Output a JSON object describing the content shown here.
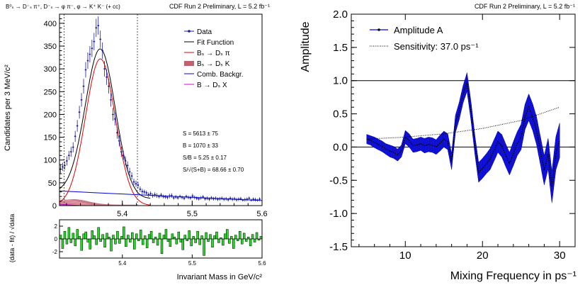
{
  "chart_data": [
    {
      "type": "line",
      "corner_title": "B⁰ₛ → D⁻ₛ π⁺, D⁻ₛ → φ π⁻, φ → K⁺ K⁻ (+ cc)",
      "run_label": "CDF Run 2 Preliminary, L = 5.2 fb⁻¹",
      "xlabel": "Invariant Mass in GeV/c²",
      "ylabel": "Candidates per 3 MeV/c²",
      "xlim": [
        5.31,
        5.6
      ],
      "ylim": [
        0,
        420
      ],
      "x_ticks": [
        "5.4",
        "5.5",
        "5.6"
      ],
      "y_ticks": [
        "0",
        "50",
        "100",
        "150",
        "200",
        "250",
        "300",
        "350",
        "400"
      ],
      "signal_window": [
        5.3166,
        5.4216
      ],
      "legend": [
        "Data",
        "Fit Function",
        "Bₛ → Dₛ π",
        "Bₛ → Dₛ K",
        "Comb. Backgr.",
        "B → Dₛ X"
      ],
      "stats": [
        "S = 5613 ± 75",
        "B = 1070 ± 33",
        "S/B = 5.25 ± 0.17",
        "S/√(S+B) = 68.66 ± 0.70"
      ],
      "series": [
        {
          "name": "Data",
          "x": [
            5.3115,
            5.3145,
            5.3175,
            5.3205,
            5.3235,
            5.3265,
            5.3295,
            5.3325,
            5.3355,
            5.3385,
            5.3415,
            5.3445,
            5.3475,
            5.3505,
            5.3535,
            5.3565,
            5.3595,
            5.3625,
            5.3655,
            5.3685,
            5.3715,
            5.3745,
            5.3775,
            5.3805,
            5.3835,
            5.3865,
            5.3895,
            5.3925,
            5.3955,
            5.3985,
            5.4015,
            5.4045,
            5.4075,
            5.4105,
            5.4135,
            5.4165,
            5.4195,
            5.4225,
            5.4255,
            5.4285,
            5.4315,
            5.4345,
            5.4375,
            5.4405,
            5.4435,
            5.4465,
            5.4495,
            5.4525,
            5.4555,
            5.4585,
            5.4615,
            5.4645,
            5.4675,
            5.4705,
            5.4735,
            5.4765,
            5.4795,
            5.4825,
            5.4855,
            5.4885,
            5.4915,
            5.4945,
            5.4975,
            5.5005,
            5.5035,
            5.5065,
            5.5095,
            5.5125,
            5.5155,
            5.5185,
            5.5215,
            5.5245,
            5.5275,
            5.5305,
            5.5335,
            5.5365,
            5.5395,
            5.5425,
            5.5455,
            5.5485,
            5.5515,
            5.5545,
            5.5575,
            5.5605,
            5.5635,
            5.5665,
            5.5695,
            5.5725,
            5.5755,
            5.5785,
            5.5815,
            5.5845,
            5.5875,
            5.5905,
            5.5935,
            5.5965
          ],
          "y": [
            80,
            85,
            88,
            98,
            110,
            118,
            128,
            152,
            175,
            205,
            232,
            262,
            298,
            318,
            332,
            345,
            360,
            390,
            395,
            365,
            340,
            300,
            282,
            262,
            232,
            200,
            190,
            160,
            142,
            118,
            110,
            98,
            88,
            74,
            65,
            52,
            48,
            45,
            36,
            31,
            30,
            28,
            24,
            26,
            22,
            24,
            22,
            20,
            23,
            20,
            19,
            18,
            21,
            22,
            17,
            19,
            17,
            20,
            18,
            16,
            20,
            18,
            17,
            21,
            18,
            16,
            15,
            17,
            19,
            15,
            16,
            14,
            17,
            15,
            16,
            14,
            15,
            16,
            14,
            15,
            13,
            16,
            14,
            15,
            13,
            14,
            15,
            12,
            13,
            14,
            16,
            12,
            14,
            13,
            12,
            14
          ],
          "errors": [
            9,
            9,
            9,
            10,
            10,
            11,
            11,
            12,
            13,
            14,
            15,
            16,
            17,
            18,
            18,
            19,
            19,
            20,
            20,
            19,
            18,
            17,
            17,
            16,
            15,
            14,
            14,
            13,
            12,
            11,
            10,
            10,
            9,
            9,
            8,
            7,
            7,
            7,
            6,
            6,
            5,
            5,
            5,
            5,
            5,
            5,
            5,
            4,
            5,
            4,
            4,
            4,
            5,
            5,
            4,
            4,
            4,
            4,
            4,
            4,
            4,
            4,
            4,
            5,
            4,
            4,
            4,
            4,
            4,
            4,
            4,
            4,
            4,
            4,
            4,
            4,
            4,
            4,
            4,
            4,
            4,
            4,
            4,
            4,
            4,
            4,
            4,
            3,
            4,
            4,
            4,
            3,
            4,
            4,
            3,
            4
          ]
        },
        {
          "name": "Fit Function",
          "model": {
            "mean": 5.3685,
            "sigma": 0.0213,
            "amplitude": 322,
            "background": [
              15,
              5.6,
              24
            ]
          }
        },
        {
          "name": "Bₛ → Dₛ π",
          "model": {
            "mean": 5.3685,
            "sigma": 0.0213,
            "amplitude": 322
          }
        },
        {
          "name": "Bₛ → Dₛ K",
          "model": {
            "peak": 5.33,
            "height": 12
          }
        },
        {
          "name": "Comb. Backgr.",
          "model": {
            "start": 32,
            "end": 11
          }
        },
        {
          "name": "B → Dₛ X",
          "model": {
            "height": 3
          }
        }
      ]
    },
    {
      "type": "bar",
      "ylabel": "(data - fit) / √data",
      "xlabel": "Invariant Mass in GeV/c²",
      "xlim": [
        5.31,
        5.6
      ],
      "ylim": [
        -3,
        3
      ],
      "x_ticks": [
        "5.4",
        "5.5",
        "5.6"
      ],
      "y_ticks": [
        "2",
        "0",
        "-2"
      ],
      "values": [
        0.6,
        -1.5,
        1.2,
        -0.8,
        1.8,
        -0.6,
        0.9,
        -1.1,
        1.5,
        0.4,
        -1.8,
        0.8,
        1.1,
        -0.5,
        -1.6,
        1.3,
        0.5,
        -0.9,
        1.8,
        -0.4,
        0.7,
        -1.3,
        0.9,
        0.3,
        -1.9,
        0.6,
        -0.8,
        1.2,
        -0.7,
        0.4,
        1.9,
        -1.2,
        0.6,
        -0.5,
        1.0,
        -1.6,
        0.8,
        -0.3,
        1.4,
        -0.9,
        0.5,
        -1.4,
        0.7,
        1.2,
        -0.6,
        0.3,
        -1.0,
        0.9,
        -2.3,
        0.6,
        1.5,
        -0.4,
        -1.2,
        0.8,
        0.3,
        -0.8,
        1.1,
        -0.5,
        -1.7,
        0.6,
        -0.3,
        1.3,
        -1.1,
        0.4,
        -0.6,
        1.2,
        -0.9,
        0.5,
        -2.6,
        1.0,
        -0.4,
        0.7,
        -1.3,
        0.5,
        1.1,
        -0.6,
        0.2,
        -1.0,
        0.8,
        1.5,
        -0.7,
        0.4,
        -1.5,
        0.6,
        -0.3,
        1.2,
        -0.8,
        0.9,
        -0.4,
        0.3,
        -1.1,
        0.7,
        -0.5,
        1.0,
        -0.2,
        0.4
      ]
    },
    {
      "type": "line",
      "run_label": "CDF Run 2 Preliminary, L = 5.2 fb⁻¹",
      "xlabel": "Mixing Frequency in ps⁻¹",
      "ylabel": "Amplitude",
      "xlim": [
        3,
        32
      ],
      "ylim": [
        -1.5,
        2.0
      ],
      "x_ticks": [
        10,
        20,
        30
      ],
      "y_ticks": [
        "2.0",
        "1.5",
        "1.0",
        "0.5",
        "0.0",
        "-0.5",
        "-1.0",
        "-1.5"
      ],
      "reference_lines": [
        1.0,
        0.0
      ],
      "legend": [
        "Amplitude A",
        "Sensitivity: 37.0 ps⁻¹"
      ],
      "series": [
        {
          "name": "Amplitude A",
          "x": [
            5,
            5.5,
            6,
            6.5,
            7,
            7.5,
            8,
            8.5,
            9,
            9.5,
            10,
            10.5,
            11,
            11.5,
            12,
            12.5,
            13,
            13.5,
            14,
            14.5,
            15,
            15.5,
            16,
            16.5,
            17,
            17.5,
            18,
            18.5,
            19,
            19.5,
            20,
            20.5,
            21,
            21.5,
            22,
            22.5,
            23,
            23.5,
            24,
            24.5,
            25,
            25.5,
            26,
            26.5,
            27,
            27.5,
            28,
            28.5,
            29,
            29.5,
            30
          ],
          "y": [
            0.12,
            0.1,
            0.07,
            0.04,
            0.01,
            -0.03,
            -0.06,
            -0.08,
            -0.12,
            -0.06,
            0.15,
            0.1,
            0.02,
            0.03,
            0.05,
            0.02,
            0.04,
            0.03,
            0.0,
            0.06,
            0.12,
            0.08,
            -0.22,
            0.35,
            0.55,
            0.8,
            0.98,
            0.55,
            0.05,
            -0.38,
            -0.32,
            -0.25,
            -0.18,
            -0.05,
            0.08,
            0.02,
            -0.12,
            -0.25,
            -0.1,
            0.05,
            0.15,
            0.45,
            0.6,
            0.45,
            0.25,
            -0.05,
            -0.35,
            -0.1,
            -0.6,
            -0.1,
            0.1
          ],
          "errors": [
            0.07,
            0.07,
            0.08,
            0.08,
            0.08,
            0.08,
            0.09,
            0.09,
            0.09,
            0.09,
            0.1,
            0.1,
            0.1,
            0.1,
            0.1,
            0.11,
            0.11,
            0.11,
            0.11,
            0.12,
            0.12,
            0.12,
            0.12,
            0.13,
            0.13,
            0.13,
            0.14,
            0.14,
            0.14,
            0.15,
            0.15,
            0.15,
            0.16,
            0.16,
            0.16,
            0.17,
            0.17,
            0.17,
            0.18,
            0.18,
            0.19,
            0.19,
            0.2,
            0.2,
            0.21,
            0.21,
            0.22,
            0.23,
            0.24,
            0.25,
            0.26
          ]
        },
        {
          "name": "Sensitivity: 37.0 ps⁻¹",
          "x": [
            5,
            10,
            15,
            20,
            25,
            30
          ],
          "y": [
            0.12,
            0.15,
            0.2,
            0.28,
            0.4,
            0.6
          ]
        }
      ]
    }
  ]
}
